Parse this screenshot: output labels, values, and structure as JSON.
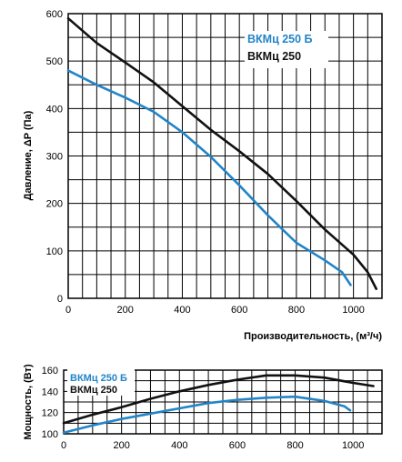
{
  "colors": {
    "blue": "#2185c8",
    "black": "#111111",
    "grid": "#000000"
  },
  "chart_data": [
    {
      "type": "line",
      "xlabel": "Производительность, (м³/ч)",
      "ylabel": "Давление, ΔP (Па)",
      "xlim": [
        0,
        1100
      ],
      "ylim": [
        0,
        600
      ],
      "xticks": [
        0,
        200,
        400,
        600,
        800,
        1000
      ],
      "yticks": [
        0,
        100,
        200,
        300,
        400,
        500,
        600
      ],
      "grid": true,
      "legend_position": "top-right",
      "series": [
        {
          "name": "ВКМц 250 Б",
          "color": "blue",
          "points": [
            [
              0,
              480
            ],
            [
              100,
              450
            ],
            [
              200,
              423
            ],
            [
              300,
              393
            ],
            [
              400,
              350
            ],
            [
              500,
              298
            ],
            [
              600,
              238
            ],
            [
              700,
              175
            ],
            [
              800,
              117
            ],
            [
              900,
              80
            ],
            [
              960,
              55
            ],
            [
              990,
              28
            ]
          ]
        },
        {
          "name": "ВКМц 250",
          "color": "black",
          "points": [
            [
              0,
              590
            ],
            [
              100,
              538
            ],
            [
              200,
              497
            ],
            [
              300,
              455
            ],
            [
              400,
              405
            ],
            [
              500,
              355
            ],
            [
              600,
              310
            ],
            [
              700,
              262
            ],
            [
              800,
              205
            ],
            [
              900,
              145
            ],
            [
              1000,
              92
            ],
            [
              1050,
              55
            ],
            [
              1080,
              20
            ]
          ]
        }
      ]
    },
    {
      "type": "line",
      "xlabel": "",
      "ylabel": "Мощность, (Вт)",
      "xlim": [
        0,
        1100
      ],
      "ylim": [
        100,
        160
      ],
      "xticks": [
        0,
        200,
        400,
        600,
        800,
        1000
      ],
      "yticks": [
        100,
        120,
        140,
        160
      ],
      "grid": true,
      "legend_position": "top-left",
      "series": [
        {
          "name": "ВКМц 250 Б",
          "color": "blue",
          "points": [
            [
              0,
              101
            ],
            [
              100,
              108
            ],
            [
              200,
              114
            ],
            [
              300,
              119
            ],
            [
              400,
              124
            ],
            [
              500,
              129
            ],
            [
              600,
              132
            ],
            [
              700,
              134
            ],
            [
              800,
              135
            ],
            [
              900,
              131
            ],
            [
              970,
              126
            ],
            [
              990,
              122
            ]
          ]
        },
        {
          "name": "ВКМц 250",
          "color": "black",
          "points": [
            [
              0,
              110
            ],
            [
              100,
              118
            ],
            [
              200,
              125
            ],
            [
              300,
              133
            ],
            [
              400,
              140
            ],
            [
              500,
              146
            ],
            [
              600,
              151
            ],
            [
              700,
              155
            ],
            [
              800,
              155
            ],
            [
              900,
              153
            ],
            [
              1000,
              148
            ],
            [
              1070,
              145
            ]
          ]
        }
      ]
    }
  ]
}
